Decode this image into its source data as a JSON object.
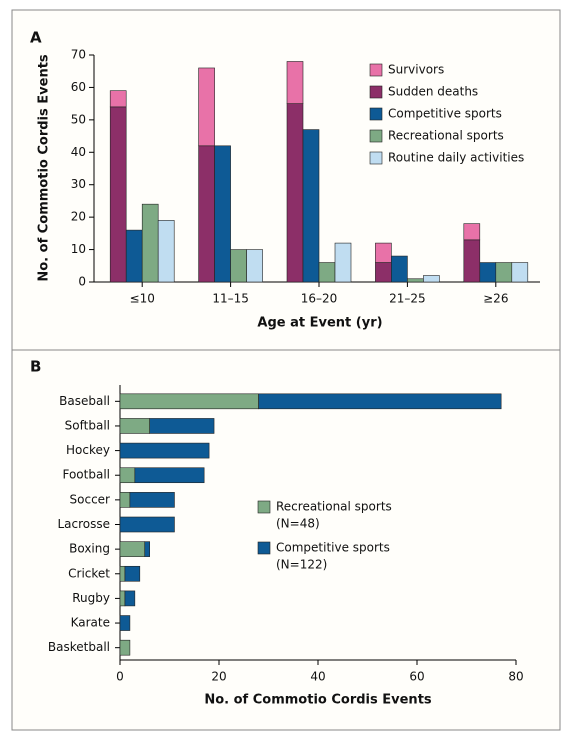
{
  "chart_data": [
    {
      "type": "bar",
      "panel": "A",
      "ylabel": "No. of Commotio Cordis Events",
      "xlabel": "Age at Event (yr)",
      "categories": [
        "≤10",
        "11–15",
        "16–20",
        "21–25",
        "≥26"
      ],
      "ylim": [
        0,
        70
      ],
      "yticks": [
        0,
        10,
        20,
        30,
        40,
        50,
        60,
        70
      ],
      "series": [
        {
          "name": "Survivors",
          "color": "#e872a8",
          "stacked": true,
          "values": [
            5,
            24,
            13,
            6,
            5
          ]
        },
        {
          "name": "Sudden deaths",
          "color": "#8c2f68",
          "stacked": true,
          "values": [
            54,
            42,
            55,
            6,
            13
          ]
        },
        {
          "name": "Competitive sports",
          "color": "#0e5a95",
          "values": [
            16,
            42,
            47,
            8,
            6
          ]
        },
        {
          "name": "Recreational sports",
          "color": "#7eaa84",
          "values": [
            24,
            10,
            6,
            1,
            6
          ]
        },
        {
          "name": "Routine daily activities",
          "color": "#c0ddf1",
          "values": [
            19,
            10,
            12,
            2,
            6
          ]
        }
      ]
    },
    {
      "type": "barh",
      "panel": "B",
      "xlabel": "No. of Commotio Cordis Events",
      "categories": [
        "Baseball",
        "Softball",
        "Hockey",
        "Football",
        "Soccer",
        "Lacrosse",
        "Boxing",
        "Cricket",
        "Rugby",
        "Karate",
        "Basketball"
      ],
      "xlim": [
        0,
        80
      ],
      "xticks": [
        0,
        20,
        40,
        60,
        80
      ],
      "series": [
        {
          "name": "Recreational sports",
          "n_label": "(N=48)",
          "color": "#7eaa84",
          "values": [
            28,
            6,
            0,
            3,
            2,
            0,
            5,
            1,
            1,
            0,
            2
          ]
        },
        {
          "name": "Competitive sports",
          "n_label": "(N=122)",
          "color": "#0e5a95",
          "values": [
            49,
            13,
            18,
            14,
            9,
            11,
            1,
            3,
            2,
            2,
            0
          ]
        }
      ]
    }
  ]
}
